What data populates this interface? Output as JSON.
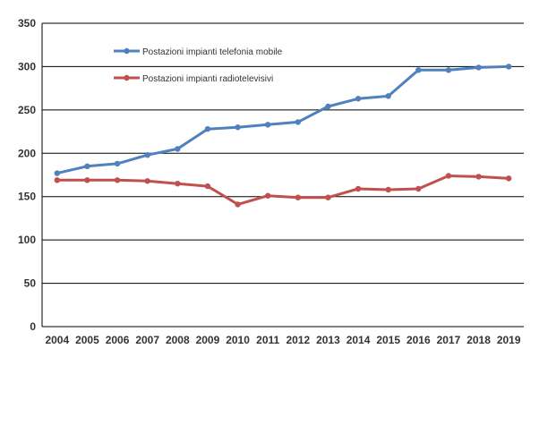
{
  "chart_data": {
    "type": "line",
    "title": "",
    "xlabel": "",
    "ylabel": "",
    "ylim": [
      0,
      350
    ],
    "yticks": [
      0,
      50,
      100,
      150,
      200,
      250,
      300,
      350
    ],
    "grid": true,
    "legend_position": "top-left inside",
    "categories": [
      "2004",
      "2005",
      "2006",
      "2007",
      "2008",
      "2009",
      "2010",
      "2011",
      "2012",
      "2013",
      "2014",
      "2015",
      "2016",
      "2017",
      "2018",
      "2019"
    ],
    "series": [
      {
        "name": "Postazioni impianti telefonia mobile",
        "color": "#4F81BD",
        "values": [
          177,
          185,
          188,
          198,
          205,
          228,
          230,
          233,
          236,
          254,
          263,
          266,
          296,
          296,
          299,
          300
        ]
      },
      {
        "name": "Postazioni impianti radiotelevisivi",
        "color": "#C0504D",
        "values": [
          169,
          169,
          169,
          168,
          165,
          162,
          141,
          151,
          149,
          149,
          159,
          158,
          159,
          174,
          173,
          171
        ]
      }
    ]
  }
}
